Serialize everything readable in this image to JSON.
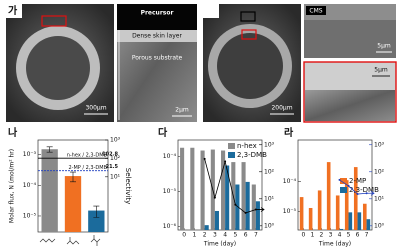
{
  "sem_panel": {
    "label": "가",
    "left_scale": "300μm",
    "precursor": "Precursor",
    "dense": "Dense skin layer",
    "porous": "Porous substrate",
    "zoom_scale": "2μm",
    "right_scale": "200μm",
    "cms_title": "CMS",
    "cms_scale_top": "5μm",
    "cms_scale_bottom": "5μm"
  },
  "chart_data": [
    {
      "type": "bar",
      "label": "나",
      "ylabel": "Molar flux, N (mol/m² hr)",
      "y2label": "Selectivity",
      "log_y": true,
      "categories": [
        null,
        null,
        null
      ],
      "values": [
        0.0015,
        0.0002,
        1.5e-05
      ],
      "errors": [
        0.0003,
        7e-05,
        6e-06
      ],
      "colors": [
        "#8a8a8a",
        "#f07022",
        "#1b6b9c"
      ],
      "ylim": [
        3e-06,
        0.003
      ],
      "yticks": [
        {
          "value": 1e-05,
          "label": "10⁻⁵"
        },
        {
          "value": 0.0001,
          "label": "10⁻⁴"
        },
        {
          "value": 0.001,
          "label": "10⁻³"
        }
      ],
      "y2lim": [
        0.01,
        1000
      ],
      "y2ticks": [
        {
          "value": 10,
          "label": "10¹"
        },
        {
          "value": 100,
          "label": "10²"
        },
        {
          "value": 1000,
          "label": "10³"
        }
      ],
      "selectivity": [
        {
          "name": "n-hex / 2,3-DMB",
          "value": 102.8,
          "color": "#000000"
        },
        {
          "name": "2-MP / 2,3-DMB",
          "value": 21.5,
          "color": "#1f3fbf"
        }
      ]
    },
    {
      "type": "grouped-bar",
      "label": "다",
      "xlabel": "Time (day)",
      "log_y": true,
      "legend": "upper right",
      "x": [
        0,
        1,
        2,
        3,
        4,
        5,
        6,
        7
      ],
      "xlim": [
        -0.6,
        7.6
      ],
      "xticks": [
        0,
        1,
        2,
        3,
        4,
        5,
        6,
        7
      ],
      "series": [
        {
          "name": "n-hex",
          "color": "#8a8a8a",
          "values": [
            0.00018,
            0.00018,
            0.00015,
            0.00016,
            0.00015,
            7e-05,
            7e-05,
            1.6e-05
          ]
        },
        {
          "name": "2,3-DMB",
          "color": "#1b6b9c",
          "values": [
            null,
            null,
            1.1e-06,
            2.8e-06,
            5.6e-05,
            1.6e-05,
            1.9e-05,
            5.3e-06
          ]
        }
      ],
      "line": {
        "color": "#000000",
        "axis": "y2",
        "values": [
          null,
          null,
          300,
          11,
          240,
          6,
          3,
          4
        ]
      },
      "ylim": [
        8e-07,
        0.0003
      ],
      "yticks": [
        {
          "value": 1e-06,
          "label": "10⁻⁶"
        },
        {
          "value": 1e-05,
          "label": "10⁻⁵"
        },
        {
          "value": 0.0001,
          "label": "10⁻⁴"
        }
      ],
      "y2lim": [
        0.7,
        1500
      ],
      "y2ticks": [
        {
          "value": 1,
          "label": "10⁰"
        },
        {
          "value": 10,
          "label": "10¹"
        },
        {
          "value": 100,
          "label": "10²"
        },
        {
          "value": 1000,
          "label": "10³"
        }
      ],
      "y2color": "#000000"
    },
    {
      "type": "grouped-bar",
      "label": "라",
      "xlabel": "Time (day)",
      "log_y": true,
      "legend": "center right",
      "x": [
        0,
        1,
        2,
        3,
        4,
        5,
        6,
        7
      ],
      "xlim": [
        -0.6,
        7.6
      ],
      "xticks": [
        0,
        1,
        2,
        3,
        4,
        5,
        6,
        7
      ],
      "series": [
        {
          "name": "2-MP",
          "color": "#f07022",
          "values": [
            3e-05,
            1.3e-05,
            5e-05,
            0.00044,
            3.4e-05,
            0.00011,
            0.0003,
            1.8e-05
          ]
        },
        {
          "name": "2,3-DMB",
          "color": "#1b6b9c",
          "values": [
            null,
            null,
            null,
            null,
            2.6e-06,
            9.3e-06,
            9.3e-06,
            5.5e-06
          ]
        }
      ],
      "line": {
        "color": "#1f3fbf",
        "axis": "y2",
        "values": [
          null,
          null,
          null,
          null,
          50,
          30,
          15,
          16
        ]
      },
      "ylim": [
        2.4e-06,
        0.0024
      ],
      "yticks": [
        {
          "value": 1e-05,
          "label": "10⁻⁵"
        },
        {
          "value": 0.0001,
          "label": "10⁻⁴"
        }
      ],
      "y2lim": [
        0.7,
        1500
      ],
      "y2ticks": [
        {
          "value": 1,
          "label": "10⁰"
        },
        {
          "value": 10,
          "label": "10¹"
        },
        {
          "value": 100,
          "label": "10²"
        },
        {
          "value": 1000,
          "label": "10³"
        }
      ],
      "y2color": "#1f3fbf"
    }
  ]
}
